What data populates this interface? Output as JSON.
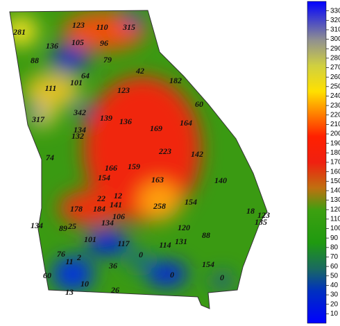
{
  "map": {
    "labels": [
      281,
      123,
      110,
      315,
      136,
      105,
      96,
      88,
      79,
      42,
      101,
      64,
      111,
      182,
      123,
      60,
      342,
      317,
      139,
      136,
      169,
      164,
      134,
      132,
      223,
      142,
      74,
      166,
      159,
      154,
      163,
      140,
      22,
      12,
      141,
      258,
      154,
      178,
      184,
      106,
      134,
      120,
      18,
      123,
      135,
      134,
      89,
      25,
      101,
      117,
      114,
      131,
      88,
      76,
      2,
      11,
      0,
      36,
      154,
      60,
      0,
      10,
      0,
      26,
      13
    ]
  },
  "colorbar": {
    "range": [
      0,
      340
    ],
    "ticks": [
      10,
      20,
      30,
      40,
      50,
      60,
      70,
      80,
      90,
      100,
      110,
      120,
      130,
      140,
      150,
      160,
      170,
      180,
      190,
      200,
      210,
      220,
      230,
      240,
      250,
      260,
      270,
      280,
      290,
      300,
      310,
      320,
      330
    ]
  }
}
